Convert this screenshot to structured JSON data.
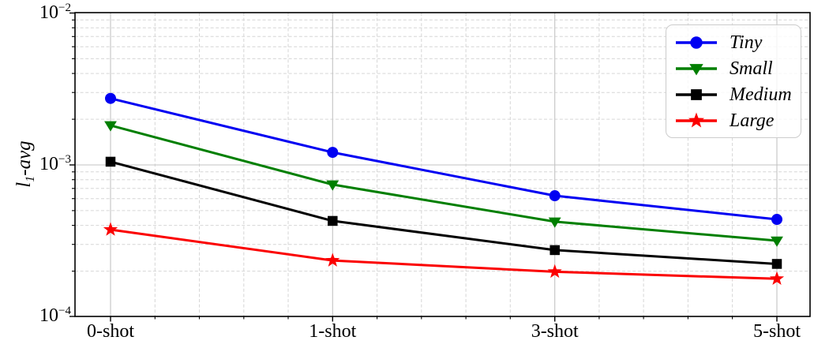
{
  "chart_data": {
    "type": "line",
    "title": "",
    "xlabel": "",
    "ylabel": "l1-avg",
    "ylabel_parts": {
      "base": "l",
      "sub": "1",
      "rest": "-avg"
    },
    "yscale": "log",
    "ylim": [
      0.0001,
      0.01
    ],
    "grid": {
      "major": true,
      "minor": true
    },
    "legend_position": "upper right",
    "categories": [
      "0-shot",
      "1-shot",
      "3-shot",
      "5-shot"
    ],
    "y_ticks": [
      {
        "value": 0.01,
        "base": "10",
        "exponent": "−2"
      },
      {
        "value": 0.001,
        "base": "10",
        "exponent": "−3"
      },
      {
        "value": 0.0001,
        "base": "10",
        "exponent": "−4"
      }
    ],
    "series": [
      {
        "name": "Tiny",
        "color": "#0000f2",
        "marker": "circle",
        "values": [
          0.00274,
          0.00121,
          0.000627,
          0.000438
        ]
      },
      {
        "name": "Small",
        "color": "#007f00",
        "marker": "triangle-down",
        "values": [
          0.00182,
          0.000742,
          0.000423,
          0.000317
        ]
      },
      {
        "name": "Medium",
        "color": "#000000",
        "marker": "square",
        "values": [
          0.00105,
          0.000428,
          0.000275,
          0.000223
        ]
      },
      {
        "name": "Large",
        "color": "#fb0000",
        "marker": "star",
        "values": [
          0.000375,
          0.000235,
          0.000198,
          0.000178
        ]
      }
    ],
    "colors": {
      "grid_major": "#c3c3c3",
      "grid_minor": "#d6d6d6",
      "spine": "#000000",
      "legend_border": "#cccccc"
    }
  }
}
